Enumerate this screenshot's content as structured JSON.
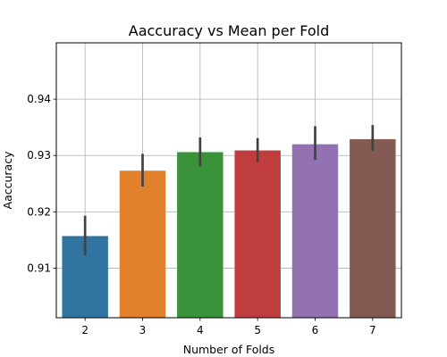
{
  "chart_data": {
    "type": "bar",
    "title": "Aaccuracy vs Mean per Fold",
    "xlabel": "Number of Folds",
    "ylabel": "Aaccuracy",
    "categories": [
      "2",
      "3",
      "4",
      "5",
      "6",
      "7"
    ],
    "values": [
      0.9157,
      0.9273,
      0.9306,
      0.9309,
      0.932,
      0.9329
    ],
    "error_low": [
      0.9123,
      0.9245,
      0.9281,
      0.9288,
      0.9292,
      0.9308
    ],
    "error_high": [
      0.9193,
      0.9303,
      0.9332,
      0.9331,
      0.9352,
      0.9354
    ],
    "colors": [
      "#3274a1",
      "#e1812c",
      "#3a923a",
      "#c03d3e",
      "#9372b2",
      "#845b53"
    ],
    "error_color": "#424242",
    "ylim": [
      0.9012,
      0.95
    ],
    "yticks": [
      0.91,
      0.92,
      0.93,
      0.94
    ],
    "ytick_labels": [
      "0.91",
      "0.92",
      "0.93",
      "0.94"
    ],
    "grid": true
  }
}
